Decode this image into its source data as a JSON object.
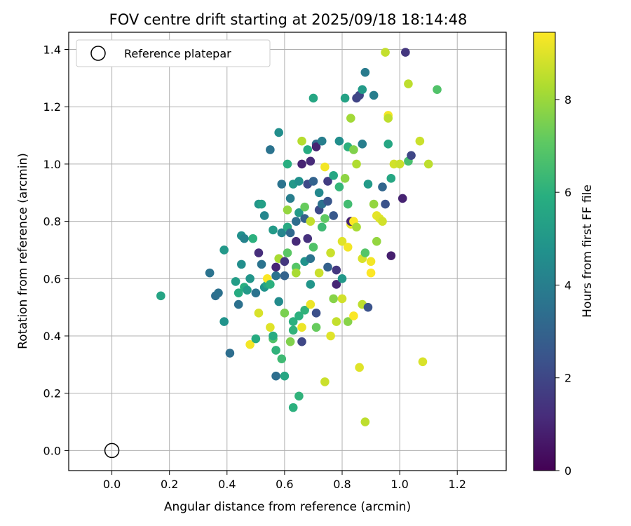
{
  "chart_data": {
    "type": "scatter",
    "title": "FOV centre drift starting at 2025/09/18 18:14:48",
    "xlabel": "Angular distance from reference (arcmin)",
    "ylabel": "Rotation from reference (arcmin)",
    "xlim": [
      -0.15,
      1.37
    ],
    "ylim": [
      -0.07,
      1.46
    ],
    "xticks": [
      "0.0",
      "0.2",
      "0.4",
      "0.6",
      "0.8",
      "1.0",
      "1.2"
    ],
    "yticks": [
      "0.0",
      "0.2",
      "0.4",
      "0.6",
      "0.8",
      "1.0",
      "1.2",
      "1.4"
    ],
    "grid": true,
    "legend": {
      "placement": "top-left",
      "entries": [
        "Reference platepar"
      ]
    },
    "colorbar": {
      "label": "Hours from first FF file",
      "range": [
        0,
        9.45
      ],
      "ticks": [
        "0",
        "2",
        "4",
        "6",
        "8"
      ],
      "colormap": "viridis"
    },
    "reference_point": {
      "x": 0.0,
      "y": 0.0
    },
    "points": [
      [
        0.17,
        0.54,
        5.5
      ],
      [
        0.34,
        0.62,
        3.6
      ],
      [
        0.36,
        0.54,
        3.4
      ],
      [
        0.37,
        0.55,
        3.5
      ],
      [
        0.39,
        0.45,
        4.8
      ],
      [
        0.39,
        0.7,
        5.0
      ],
      [
        0.41,
        0.34,
        3.4
      ],
      [
        0.43,
        0.59,
        5.2
      ],
      [
        0.44,
        0.51,
        3.5
      ],
      [
        0.44,
        0.55,
        5.8
      ],
      [
        0.45,
        0.65,
        4.6
      ],
      [
        0.45,
        0.75,
        4.7
      ],
      [
        0.46,
        0.74,
        4.2
      ],
      [
        0.46,
        0.57,
        5.9
      ],
      [
        0.47,
        0.56,
        5.1
      ],
      [
        0.48,
        0.37,
        9.3
      ],
      [
        0.48,
        0.6,
        4.9
      ],
      [
        0.49,
        0.74,
        6.0
      ],
      [
        0.5,
        0.55,
        3.6
      ],
      [
        0.5,
        0.39,
        5.8
      ],
      [
        0.51,
        0.48,
        8.9
      ],
      [
        0.51,
        0.69,
        1.2
      ],
      [
        0.51,
        0.86,
        4.9
      ],
      [
        0.52,
        0.65,
        3.6
      ],
      [
        0.52,
        0.86,
        5.3
      ],
      [
        0.53,
        0.57,
        4.8
      ],
      [
        0.53,
        0.82,
        4.3
      ],
      [
        0.54,
        0.58,
        5.5
      ],
      [
        0.54,
        0.6,
        9.4
      ],
      [
        0.55,
        0.58,
        6.0
      ],
      [
        0.55,
        1.05,
        3.6
      ],
      [
        0.55,
        0.43,
        9.0
      ],
      [
        0.56,
        0.39,
        6.8
      ],
      [
        0.56,
        0.77,
        5.1
      ],
      [
        0.56,
        0.4,
        5.8
      ],
      [
        0.57,
        0.61,
        3.6
      ],
      [
        0.57,
        0.64,
        1.0
      ],
      [
        0.57,
        0.35,
        6.1
      ],
      [
        0.57,
        0.26,
        3.4
      ],
      [
        0.58,
        1.11,
        4.6
      ],
      [
        0.58,
        0.67,
        8.2
      ],
      [
        0.58,
        0.52,
        4.5
      ],
      [
        0.59,
        0.93,
        3.6
      ],
      [
        0.59,
        0.76,
        4.3
      ],
      [
        0.59,
        0.32,
        6.4
      ],
      [
        0.6,
        0.61,
        3.0
      ],
      [
        0.6,
        0.26,
        5.6
      ],
      [
        0.6,
        0.66,
        1.5
      ],
      [
        0.6,
        0.48,
        7.5
      ],
      [
        0.61,
        0.78,
        5.7
      ],
      [
        0.61,
        0.84,
        7.9
      ],
      [
        0.61,
        0.69,
        7.0
      ],
      [
        0.61,
        1.0,
        5.9
      ],
      [
        0.62,
        0.88,
        4.0
      ],
      [
        0.62,
        0.76,
        3.2
      ],
      [
        0.62,
        0.38,
        7.6
      ],
      [
        0.63,
        0.93,
        5.0
      ],
      [
        0.63,
        0.45,
        6.0
      ],
      [
        0.63,
        0.42,
        6.1
      ],
      [
        0.63,
        0.15,
        6.0
      ],
      [
        0.64,
        0.8,
        3.4
      ],
      [
        0.64,
        0.64,
        6.9
      ],
      [
        0.64,
        0.73,
        1.1
      ],
      [
        0.64,
        0.62,
        8.2
      ],
      [
        0.65,
        0.47,
        6.0
      ],
      [
        0.65,
        0.19,
        6.1
      ],
      [
        0.65,
        0.83,
        5.1
      ],
      [
        0.65,
        0.94,
        4.7
      ],
      [
        0.66,
        1.0,
        0.9
      ],
      [
        0.66,
        0.43,
        9.2
      ],
      [
        0.66,
        0.38,
        2.0
      ],
      [
        0.66,
        1.08,
        8.4
      ],
      [
        0.67,
        0.85,
        7.2
      ],
      [
        0.67,
        0.81,
        2.9
      ],
      [
        0.67,
        0.66,
        4.8
      ],
      [
        0.67,
        0.49,
        6.1
      ],
      [
        0.68,
        1.05,
        5.8
      ],
      [
        0.68,
        0.93,
        2.1
      ],
      [
        0.68,
        0.74,
        1.3
      ],
      [
        0.69,
        0.51,
        9.2
      ],
      [
        0.69,
        0.58,
        4.9
      ],
      [
        0.69,
        0.8,
        8.6
      ],
      [
        0.69,
        0.67,
        3.6
      ],
      [
        0.69,
        1.01,
        1.1
      ],
      [
        0.7,
        1.23,
        5.6
      ],
      [
        0.7,
        0.94,
        3.0
      ],
      [
        0.7,
        0.71,
        6.8
      ],
      [
        0.71,
        1.07,
        3.2
      ],
      [
        0.71,
        1.06,
        0.9
      ],
      [
        0.71,
        0.48,
        2.3
      ],
      [
        0.71,
        0.43,
        7.2
      ],
      [
        0.72,
        0.84,
        2.1
      ],
      [
        0.72,
        0.62,
        8.7
      ],
      [
        0.72,
        0.9,
        4.4
      ],
      [
        0.73,
        0.86,
        3.5
      ],
      [
        0.73,
        1.08,
        4.0
      ],
      [
        0.73,
        0.78,
        6.4
      ],
      [
        0.74,
        0.81,
        7.1
      ],
      [
        0.74,
        0.99,
        9.3
      ],
      [
        0.74,
        0.24,
        8.7
      ],
      [
        0.75,
        0.64,
        2.9
      ],
      [
        0.75,
        0.94,
        1.7
      ],
      [
        0.75,
        0.87,
        2.5
      ],
      [
        0.76,
        0.4,
        9.0
      ],
      [
        0.76,
        0.69,
        8.7
      ],
      [
        0.77,
        0.82,
        2.6
      ],
      [
        0.77,
        0.53,
        7.7
      ],
      [
        0.77,
        0.96,
        5.6
      ],
      [
        0.78,
        0.45,
        8.6
      ],
      [
        0.78,
        0.63,
        1.5
      ],
      [
        0.78,
        0.58,
        1.0
      ],
      [
        0.79,
        1.08,
        4.6
      ],
      [
        0.79,
        0.92,
        6.2
      ],
      [
        0.8,
        0.73,
        9.0
      ],
      [
        0.8,
        0.53,
        8.8
      ],
      [
        0.8,
        0.6,
        5.0
      ],
      [
        0.81,
        1.23,
        5.4
      ],
      [
        0.81,
        0.95,
        7.8
      ],
      [
        0.82,
        1.06,
        6.0
      ],
      [
        0.82,
        0.71,
        9.3
      ],
      [
        0.82,
        0.45,
        7.7
      ],
      [
        0.82,
        0.86,
        6.5
      ],
      [
        0.83,
        1.16,
        8.1
      ],
      [
        0.83,
        0.79,
        9.1
      ],
      [
        0.83,
        0.8,
        0.9
      ],
      [
        0.84,
        1.05,
        7.6
      ],
      [
        0.84,
        0.8,
        9.4
      ],
      [
        0.84,
        0.47,
        9.4
      ],
      [
        0.85,
        1.0,
        8.3
      ],
      [
        0.85,
        1.23,
        1.9
      ],
      [
        0.85,
        0.78,
        8.2
      ],
      [
        0.86,
        1.24,
        2.0
      ],
      [
        0.86,
        0.29,
        9.0
      ],
      [
        0.87,
        0.51,
        8.5
      ],
      [
        0.87,
        1.07,
        4.0
      ],
      [
        0.87,
        0.67,
        8.9
      ],
      [
        0.87,
        1.26,
        5.1
      ],
      [
        0.88,
        1.32,
        3.9
      ],
      [
        0.88,
        0.1,
        8.5
      ],
      [
        0.88,
        0.69,
        6.9
      ],
      [
        0.89,
        0.5,
        2.4
      ],
      [
        0.89,
        0.93,
        5.1
      ],
      [
        0.9,
        0.66,
        9.3
      ],
      [
        0.9,
        0.62,
        9.5
      ],
      [
        0.91,
        0.86,
        7.9
      ],
      [
        0.91,
        1.24,
        4.0
      ],
      [
        0.92,
        0.82,
        9.1
      ],
      [
        0.92,
        0.73,
        7.9
      ],
      [
        0.93,
        0.81,
        9.0
      ],
      [
        0.94,
        0.92,
        3.1
      ],
      [
        0.94,
        0.8,
        8.8
      ],
      [
        0.95,
        1.39,
        8.6
      ],
      [
        0.95,
        0.86,
        2.4
      ],
      [
        0.96,
        1.07,
        5.6
      ],
      [
        0.96,
        1.17,
        9.3
      ],
      [
        0.96,
        1.16,
        8.5
      ],
      [
        0.97,
        0.95,
        5.6
      ],
      [
        0.97,
        0.68,
        0.8
      ],
      [
        0.98,
        1.0,
        8.8
      ],
      [
        1.0,
        1.0,
        8.7
      ],
      [
        1.01,
        0.88,
        0.9
      ],
      [
        1.02,
        1.39,
        1.5
      ],
      [
        1.03,
        1.01,
        6.6
      ],
      [
        1.03,
        1.28,
        8.5
      ],
      [
        1.04,
        1.03,
        2.0
      ],
      [
        1.07,
        1.08,
        8.7
      ],
      [
        1.08,
        0.31,
        8.9
      ],
      [
        1.1,
        1.0,
        8.5
      ],
      [
        1.13,
        1.26,
        6.8
      ]
    ]
  }
}
